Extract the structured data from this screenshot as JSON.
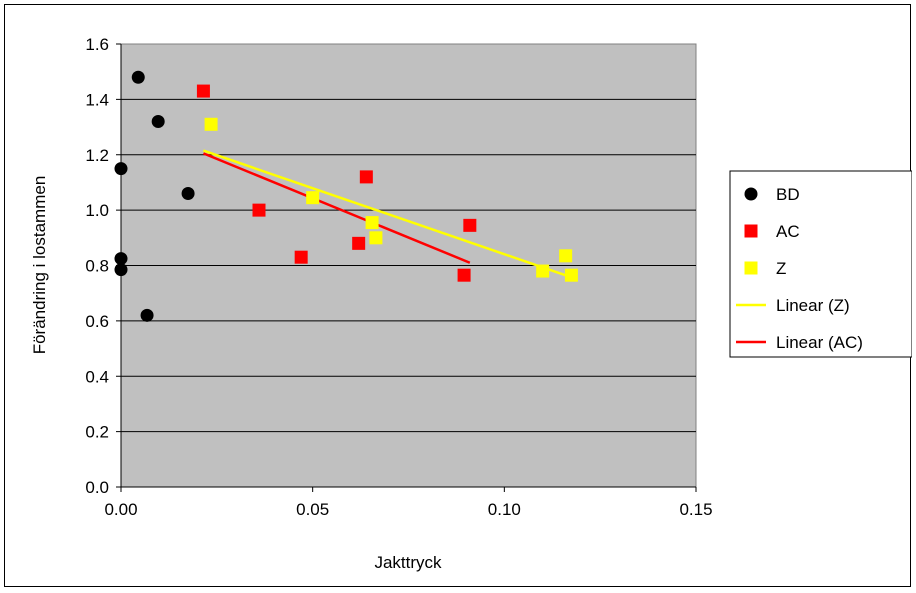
{
  "chart_data": {
    "type": "scatter",
    "xlabel": "Jakttryck",
    "ylabel": "Förändring i lostammen",
    "xlim": [
      0,
      0.15
    ],
    "ylim": [
      0,
      1.6
    ],
    "x_ticks": [
      "0.00",
      "0.05",
      "0.10",
      "0.15"
    ],
    "y_ticks": [
      "0.0",
      "0.2",
      "0.4",
      "0.6",
      "0.8",
      "1.0",
      "1.2",
      "1.4",
      "1.6"
    ],
    "grid": "horizontal",
    "plot_background": "#c0c0c0",
    "legend_position": "right",
    "series": [
      {
        "name": "BD",
        "marker": "circle",
        "color": "#000000",
        "points": [
          [
            0.0045,
            1.48
          ],
          [
            0.0097,
            1.32
          ],
          [
            0.0,
            1.15
          ],
          [
            0.0175,
            1.06
          ],
          [
            0.0,
            0.825
          ],
          [
            0.0,
            0.785
          ],
          [
            0.0068,
            0.62
          ]
        ]
      },
      {
        "name": "AC",
        "marker": "square",
        "color": "#ff0000",
        "points": [
          [
            0.0215,
            1.43
          ],
          [
            0.036,
            1.0
          ],
          [
            0.047,
            0.83
          ],
          [
            0.062,
            0.88
          ],
          [
            0.064,
            1.12
          ],
          [
            0.0895,
            0.765
          ],
          [
            0.091,
            0.945
          ]
        ]
      },
      {
        "name": "Z",
        "marker": "square",
        "color": "#ffff00",
        "points": [
          [
            0.0235,
            1.31
          ],
          [
            0.05,
            1.045
          ],
          [
            0.0655,
            0.955
          ],
          [
            0.0665,
            0.9
          ],
          [
            0.11,
            0.78
          ],
          [
            0.116,
            0.835
          ],
          [
            0.1175,
            0.765
          ]
        ]
      }
    ],
    "trendlines": [
      {
        "name": "Linear (Z)",
        "color": "#ffff00",
        "from": [
          0.0215,
          1.215
        ],
        "to": [
          0.118,
          0.755
        ]
      },
      {
        "name": "Linear (AC)",
        "color": "#ff0000",
        "from": [
          0.0215,
          1.205
        ],
        "to": [
          0.091,
          0.81
        ]
      }
    ],
    "legend": [
      {
        "label": "BD",
        "symbol": "circle",
        "color": "#000000"
      },
      {
        "label": "AC",
        "symbol": "square",
        "color": "#ff0000"
      },
      {
        "label": "Z",
        "symbol": "square",
        "color": "#ffff00"
      },
      {
        "label": "Linear (Z)",
        "symbol": "line",
        "color": "#ffff00"
      },
      {
        "label": "Linear (AC)",
        "symbol": "line",
        "color": "#ff0000"
      }
    ]
  }
}
